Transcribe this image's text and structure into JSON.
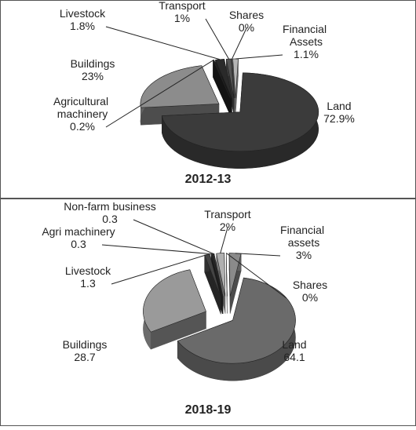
{
  "chart_data": [
    {
      "type": "pie",
      "title": "2012-13",
      "categories": [
        "Land",
        "Buildings",
        "Agricultural machinery",
        "Livestock",
        "Transport",
        "Shares",
        "Financial Assets"
      ],
      "values": [
        72.9,
        23,
        0.2,
        1.8,
        1,
        0,
        1.1
      ],
      "value_labels": [
        "72.9%",
        "23%",
        "0.2%",
        "1.8%",
        "1%",
        "0%",
        "1.1%"
      ],
      "colors": [
        "#3b3b3b",
        "#8c8c8c",
        "#222222",
        "#2a2a2a",
        "#555555",
        "#aaaaaa",
        "#b5b5b5"
      ]
    },
    {
      "type": "pie",
      "title": "2018-19",
      "categories": [
        "Land",
        "Buildings",
        "Livestock",
        "Agri machinery",
        "Non-farm business",
        "Transport",
        "Shares",
        "Financial assets"
      ],
      "values": [
        64.1,
        28.7,
        1.3,
        0.3,
        0.3,
        2,
        0,
        3
      ],
      "value_labels": [
        "64.1",
        "28.7",
        "1.3",
        "0.3",
        "0.3",
        "2%",
        "0%",
        "3%"
      ],
      "colors": [
        "#6a6a6a",
        "#9a9a9a",
        "#444444",
        "#2e2e2e",
        "#3a3a3a",
        "#b0b0b0",
        "#cccccc",
        "#8a8a8a"
      ]
    }
  ]
}
